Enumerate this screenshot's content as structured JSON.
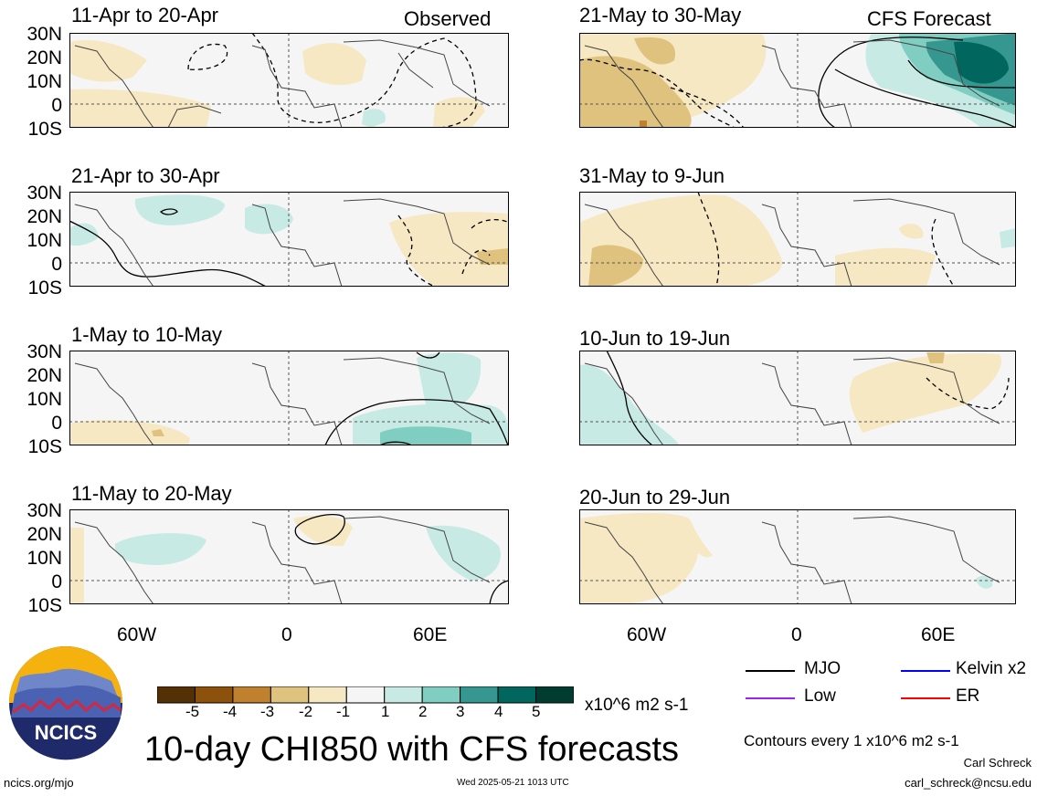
{
  "chart_data": {
    "type": "map",
    "title": "10-day CHI850 with CFS forecasts",
    "variable": "CHI850",
    "units": "x10^6 m2 s-1",
    "contour_note": "Contours every 1 x10^6 m2 s-1",
    "lat_labels": [
      "30N",
      "20N",
      "10N",
      "0",
      "10S"
    ],
    "lon_labels": [
      "60W",
      "0",
      "60E"
    ],
    "columns": [
      {
        "label": "Observed",
        "panels": [
          {
            "period": "11-Apr to 20-Apr"
          },
          {
            "period": "21-Apr to 30-Apr"
          },
          {
            "period": "1-May to 10-May"
          },
          {
            "period": "11-May to 20-May"
          }
        ]
      },
      {
        "label": "CFS Forecast",
        "panels": [
          {
            "period": "21-May to 30-May"
          },
          {
            "period": "31-May to 9-Jun"
          },
          {
            "period": "10-Jun to 19-Jun"
          },
          {
            "period": "20-Jun to 29-Jun"
          }
        ]
      }
    ],
    "colorbar": {
      "tick_labels": [
        "-5",
        "-4",
        "-3",
        "-2",
        "-1",
        "1",
        "2",
        "3",
        "4",
        "5"
      ],
      "colors": [
        "#543005",
        "#8c510a",
        "#bf812d",
        "#dfc27d",
        "#f6e8c3",
        "#f5f5f5",
        "#c7eae5",
        "#80cdc1",
        "#35978f",
        "#01665e",
        "#003c30"
      ]
    },
    "legend": [
      {
        "label": "MJO",
        "color": "#000000"
      },
      {
        "label": "Kelvin x2",
        "color": "#0000ff"
      },
      {
        "label": "Low",
        "color": "#a020f0"
      },
      {
        "label": "ER",
        "color": "#ff0000"
      }
    ]
  },
  "logo": {
    "text": "NCICS"
  },
  "footer": {
    "url": "ncics.org/mjo",
    "timestamp": "Wed 2025-05-21 1013 UTC",
    "author": "Carl Schreck",
    "email": "carl_schreck@ncsu.edu"
  }
}
